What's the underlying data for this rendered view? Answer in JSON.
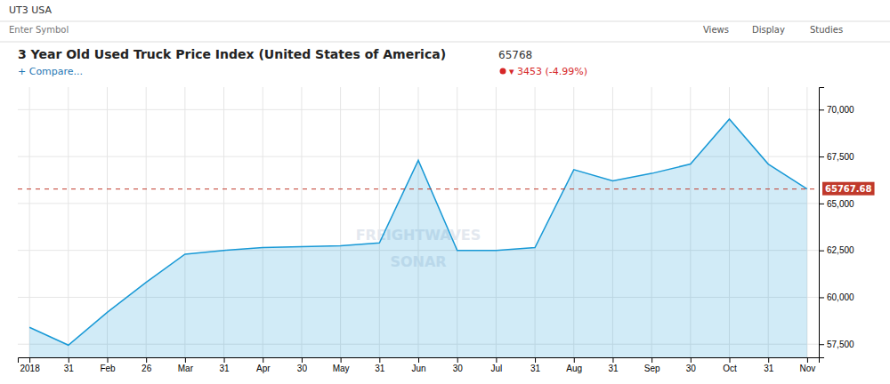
{
  "chart_data": {
    "type": "area",
    "title": "3 Year Old Used Truck Price Index (United States of America)",
    "annotations": [
      "UT3 USA",
      "Enter Symbol",
      "Views",
      "Display",
      "Studies",
      "65768",
      "▾ 3453 (-4.99%)",
      "+ Compare...",
      "FREIGHTWAVES",
      "SONAR"
    ],
    "categories": [
      "2018",
      "31",
      "Feb",
      "26",
      "Mar",
      "31",
      "Apr",
      "30",
      "May",
      "31",
      "Jun",
      "30",
      "Jul",
      "31",
      "Aug",
      "31",
      "Sep",
      "30",
      "Oct",
      "31",
      "Nov"
    ],
    "values": [
      58400,
      57450,
      59200,
      60800,
      62300,
      62500,
      62650,
      62700,
      62750,
      62900,
      67300,
      62500,
      62500,
      62650,
      66800,
      66200,
      66600,
      67100,
      69500,
      67100,
      65768
    ],
    "color": "#1899d6",
    "ylim": [
      56800,
      71200
    ],
    "yticks": [
      {
        "value": 57500,
        "label": "57,500"
      },
      {
        "value": 60000,
        "label": "60,000"
      },
      {
        "value": 62500,
        "label": "62,500"
      },
      {
        "value": 65000,
        "label": "65,000"
      },
      {
        "value": 67500,
        "label": "67,500"
      },
      {
        "value": 70000,
        "label": "70,000"
      }
    ],
    "grid": true,
    "hline": {
      "value": 65767.68,
      "label": "65767.68",
      "color": "#c0392b"
    }
  }
}
